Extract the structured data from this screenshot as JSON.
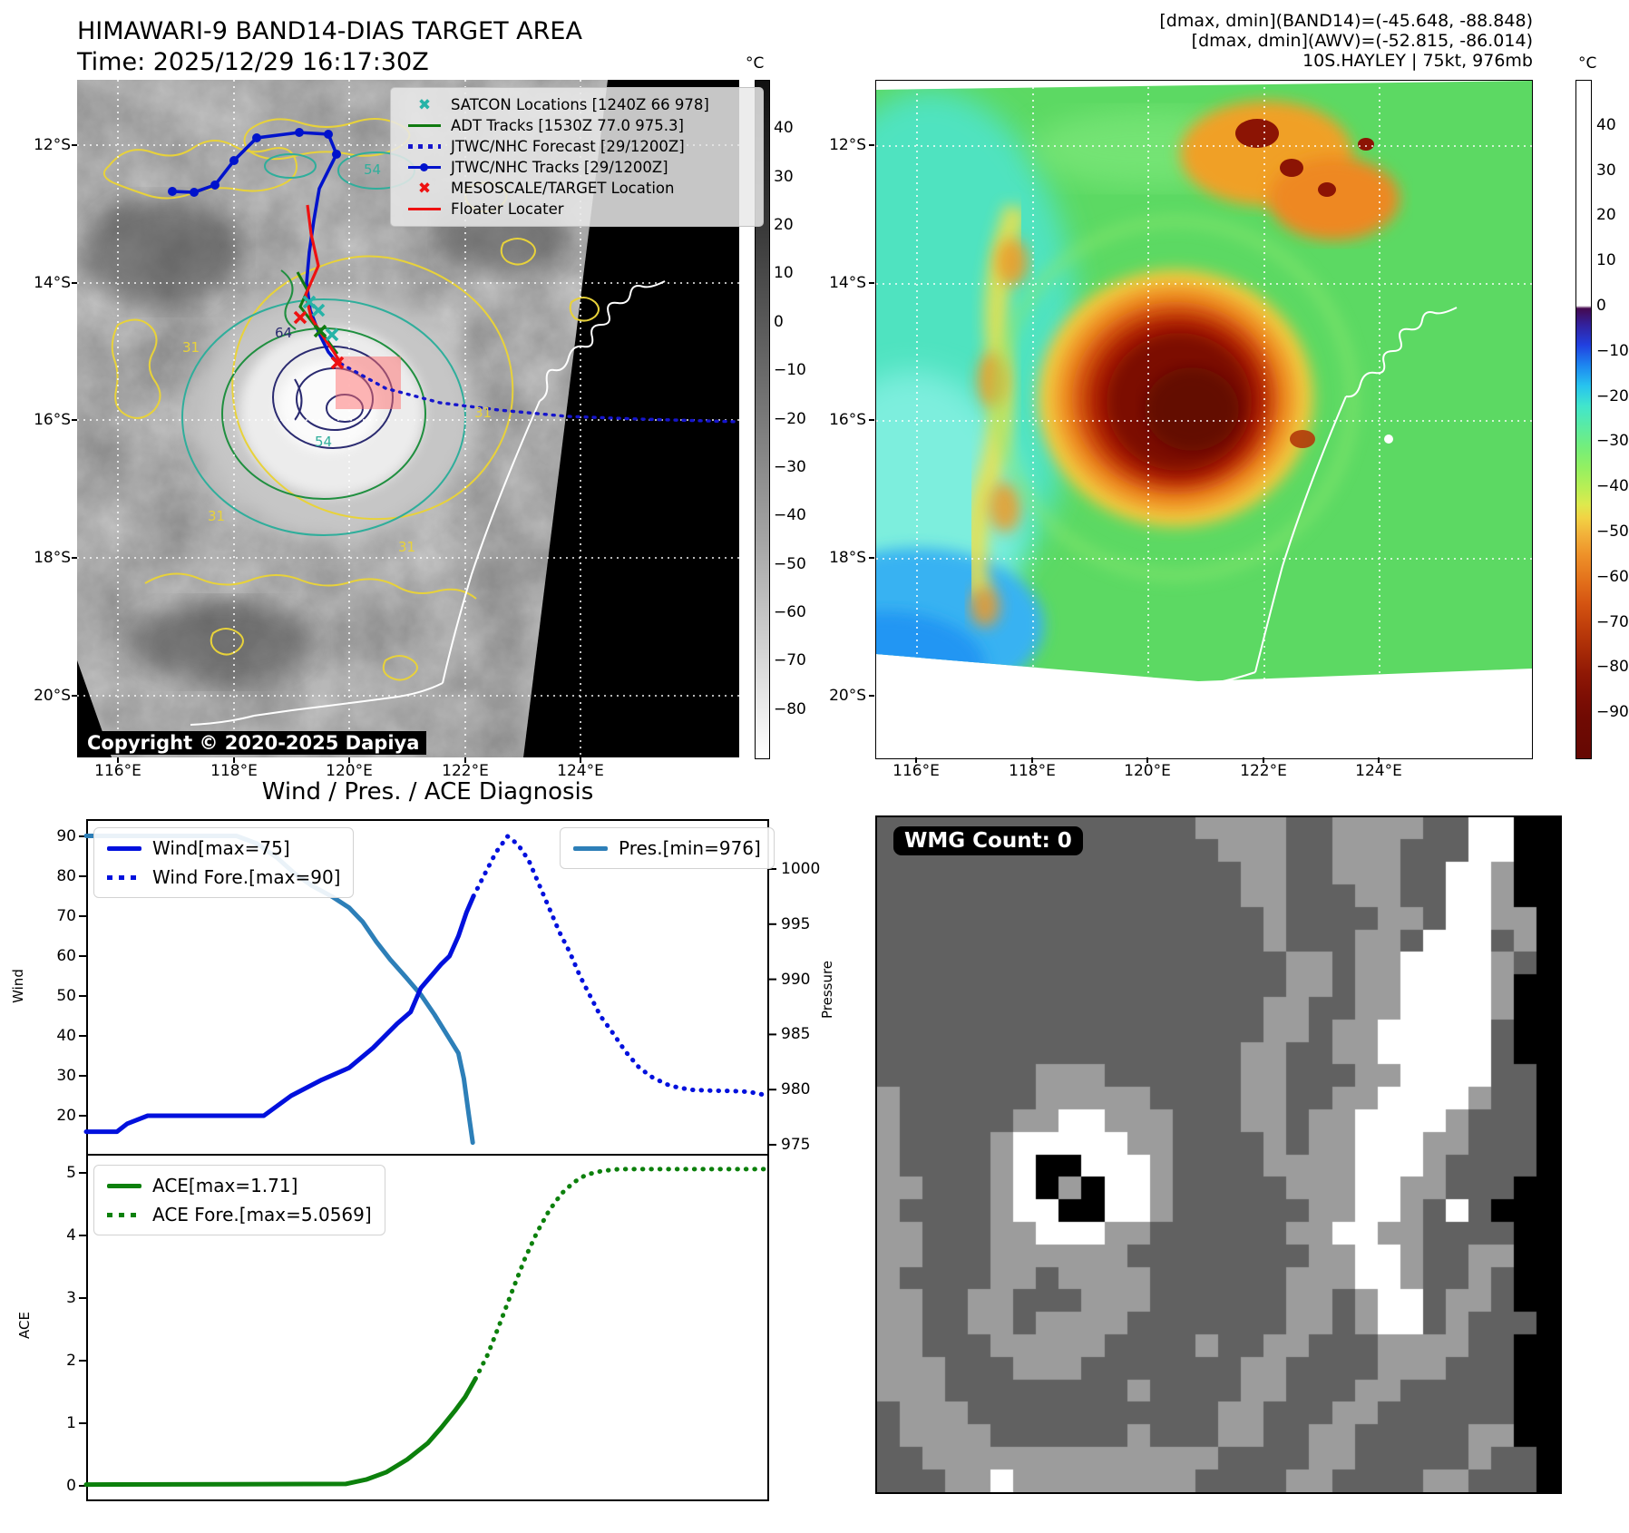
{
  "header_left": {
    "title": "HIMAWARI-9 BAND14-DIAS TARGET AREA",
    "time": "Time: 2025/12/29 16:17:30Z"
  },
  "header_right": {
    "line1": "[dmax, dmin](BAND14)=(-45.648, -88.848)",
    "line2": "[dmax, dmin](AWV)=(-52.815, -86.014)",
    "line3": "10S.HAYLEY | 75kt, 976mb"
  },
  "band14_map": {
    "x_ticks": [
      "116°E",
      "118°E",
      "120°E",
      "122°E",
      "124°E"
    ],
    "y_ticks": [
      "12°S",
      "14°S",
      "16°S",
      "18°S",
      "20°S"
    ],
    "legend": [
      {
        "label": "SATCON Locations [1240Z 66 978]",
        "color": "#26b3a7",
        "style": "x"
      },
      {
        "label": "ADT Tracks [1530Z 77.0 975.3]",
        "color": "#107a10",
        "style": "line"
      },
      {
        "label": "JTWC/NHC Forecast [29/1200Z]",
        "color": "#1515cc",
        "style": "dotted"
      },
      {
        "label": "JTWC/NHC Tracks [29/1200Z]",
        "color": "#0013cc",
        "style": "line-dot"
      },
      {
        "label": "MESOSCALE/TARGET Location",
        "color": "#ee1111",
        "style": "x"
      },
      {
        "label": "Floater Locater",
        "color": "#ee1111",
        "style": "line"
      }
    ],
    "contour_labels": {
      "teal": "54",
      "navy": "64",
      "yellow": "31"
    },
    "copyright": "Copyright © 2020-2025 Dapiya",
    "colorbar": {
      "unit": "°C",
      "values": [
        40,
        30,
        20,
        10,
        0,
        -10,
        -20,
        -30,
        -40,
        -50,
        -60,
        -70,
        -80
      ]
    }
  },
  "awv_map": {
    "x_ticks": [
      "116°E",
      "118°E",
      "120°E",
      "122°E",
      "124°E"
    ],
    "y_ticks": [
      "12°S",
      "14°S",
      "16°S",
      "18°S",
      "20°S"
    ],
    "colorbar": {
      "unit": "°C",
      "values": [
        40,
        30,
        20,
        10,
        0,
        -10,
        -20,
        -30,
        -40,
        -50,
        -60,
        -70,
        -80,
        -90
      ]
    }
  },
  "diagnosis_title": "Wind / Pres. / ACE Diagnosis",
  "chart_data": [
    {
      "type": "line",
      "title": "Wind / Pres. / ACE Diagnosis",
      "x_axis": "time (unlabeled)",
      "y_left": {
        "label": "Wind",
        "ticks": [
          90,
          80,
          70,
          60,
          50,
          40,
          30,
          20
        ],
        "range": [
          10.2,
          94.3
        ]
      },
      "y_right": {
        "label": "Pressure",
        "ticks": [
          1000,
          995,
          990,
          985,
          980,
          975
        ],
        "range": [
          974.1,
          1004.5
        ]
      },
      "series": [
        {
          "name": "Pres.[min=976]",
          "axis": "right",
          "style": "solid",
          "color": "#2d7fb8",
          "points": [
            [
              0,
              1003
            ],
            [
              0.22,
              1003
            ],
            [
              0.25,
              1002.3
            ],
            [
              0.28,
              1001
            ],
            [
              0.305,
              999.6
            ],
            [
              0.33,
              998.5
            ],
            [
              0.36,
              997.5
            ],
            [
              0.385,
              996.5
            ],
            [
              0.405,
              995.2
            ],
            [
              0.425,
              993.4
            ],
            [
              0.445,
              991.8
            ],
            [
              0.468,
              990.2
            ],
            [
              0.49,
              988.6
            ],
            [
              0.51,
              986.8
            ],
            [
              0.53,
              984.8
            ],
            [
              0.545,
              983.3
            ],
            [
              0.553,
              981
            ],
            [
              0.56,
              977.8
            ],
            [
              0.566,
              975.2
            ]
          ]
        },
        {
          "name": "Wind[max=75]",
          "axis": "left",
          "style": "solid",
          "color": "#0010dd",
          "points": [
            [
              0,
              16
            ],
            [
              0.045,
              16
            ],
            [
              0.06,
              18
            ],
            [
              0.09,
              20
            ],
            [
              0.26,
              20
            ],
            [
              0.3,
              25
            ],
            [
              0.345,
              29
            ],
            [
              0.385,
              32
            ],
            [
              0.42,
              37
            ],
            [
              0.455,
              43
            ],
            [
              0.475,
              46
            ],
            [
              0.49,
              52
            ],
            [
              0.505,
              55
            ],
            [
              0.52,
              58
            ],
            [
              0.532,
              60
            ],
            [
              0.545,
              65
            ],
            [
              0.557,
              71
            ],
            [
              0.567,
              75
            ]
          ]
        },
        {
          "name": "Wind Fore.[max=90]",
          "axis": "left",
          "style": "dotted",
          "color": "#0010dd",
          "points": [
            [
              0.567,
              75
            ],
            [
              0.582,
              80
            ],
            [
              0.6,
              86
            ],
            [
              0.617,
              90
            ],
            [
              0.632,
              88
            ],
            [
              0.648,
              84
            ],
            [
              0.663,
              78
            ],
            [
              0.678,
              72
            ],
            [
              0.693,
              66
            ],
            [
              0.708,
              61
            ],
            [
              0.723,
              55
            ],
            [
              0.738,
              50
            ],
            [
              0.753,
              45
            ],
            [
              0.77,
              41
            ],
            [
              0.79,
              36
            ],
            [
              0.81,
              32
            ],
            [
              0.83,
              29.5
            ],
            [
              0.855,
              27.5
            ],
            [
              0.885,
              26.5
            ],
            [
              0.915,
              26.3
            ],
            [
              0.945,
              26.2
            ],
            [
              0.97,
              26
            ],
            [
              1,
              25
            ]
          ]
        }
      ]
    },
    {
      "type": "line",
      "y_left": {
        "label": "ACE",
        "ticks": [
          5,
          4,
          3,
          2,
          1,
          0
        ],
        "range": [
          -0.25,
          5.3
        ]
      },
      "series": [
        {
          "name": "ACE[max=1.71]",
          "style": "solid",
          "color": "#0c800c",
          "points": [
            [
              0,
              0.02
            ],
            [
              0.38,
              0.03
            ],
            [
              0.41,
              0.1
            ],
            [
              0.44,
              0.22
            ],
            [
              0.47,
              0.42
            ],
            [
              0.5,
              0.68
            ],
            [
              0.52,
              0.93
            ],
            [
              0.54,
              1.2
            ],
            [
              0.555,
              1.42
            ],
            [
              0.57,
              1.71
            ]
          ]
        },
        {
          "name": "ACE Fore.[max=5.0569]",
          "style": "dotted",
          "color": "#0c800c",
          "points": [
            [
              0.57,
              1.71
            ],
            [
              0.588,
              2.1
            ],
            [
              0.606,
              2.6
            ],
            [
              0.624,
              3.12
            ],
            [
              0.642,
              3.62
            ],
            [
              0.66,
              4.05
            ],
            [
              0.678,
              4.4
            ],
            [
              0.696,
              4.67
            ],
            [
              0.714,
              4.85
            ],
            [
              0.732,
              4.97
            ],
            [
              0.755,
              5.03
            ],
            [
              0.78,
              5.06
            ],
            [
              0.83,
              5.06
            ],
            [
              1,
              5.06
            ]
          ]
        }
      ]
    }
  ],
  "wmg": {
    "label": "WMG Count: 0",
    "palette": {
      "d": "#616161",
      "m": "#9c9c9c",
      "w": "#ffffff",
      "b": "#000000"
    },
    "grid": [
      "ddddddddddddddmmmmddmmmmddwwbb",
      "dddddddddddddddmmmddmmmdddwwbb",
      "ddddddddddddddddmmddmmmddwwmbb",
      "ddddddddddddddddmmdddmmddwwmbb",
      "dddddddddddddddddmddddmmdwwmmb",
      "dddddddddddddddddmdddmmdwwwdmb",
      "ddddddddddddddddddmmdmmwwwwmdb",
      "ddddddddddddddddddmmdmmwwwwmbb",
      "dddddddddddddddddmmddmmwwwwmbb",
      "dddddddddddddddddmmdmmwwwwwdbb",
      "ddddddddddddddddmmddmmwwwwwdbb",
      "dddddddmmmddddddmmdddmmwwwwddb",
      "mddddddmmmmmddddmmddmmwwwwmddb",
      "mdddddmmwwmmmdddmmdmmwwwwmdddb",
      "mddddmwwwwwmmddddmdmmwwwmmdddb",
      "mddddmwbbwwwmddddmmmmwwwmddddb",
      "mmdddmwbmbwwmdddddmmmwwmmdddbb",
      "mddddmwwbbwwmddddddmmwwmdwdbbb",
      "mmdddmmwwwmmddddddmmwwmmddddbb",
      "mmdddmmmmmmddddddddmmwwmddmmbb",
      "mddddmmdmmmmddddddmmmwwmddmdbb",
      "mmddmmdddmmmddddddmmdmwwdmmdbb",
      "mmddmmdmmmmdddddddmmdmwwdmdddb",
      "mmdddmmmmmddddmddmmdddmmmmddbb",
      "mmmdddmmmdddddddmmddddmmmdddbb",
      "mmmddddddddmddddmmdddmmdddddbb",
      "dmmmdddddddddddmmdddmmddddddbb",
      "dmmmmddddddmdddmmddmmdddddmmbb",
      "ddmmmmmmmmmmmmmddddmmdddddmddb",
      "dddmmwmmmmmmmmddddmmddddmmdddb"
    ]
  }
}
